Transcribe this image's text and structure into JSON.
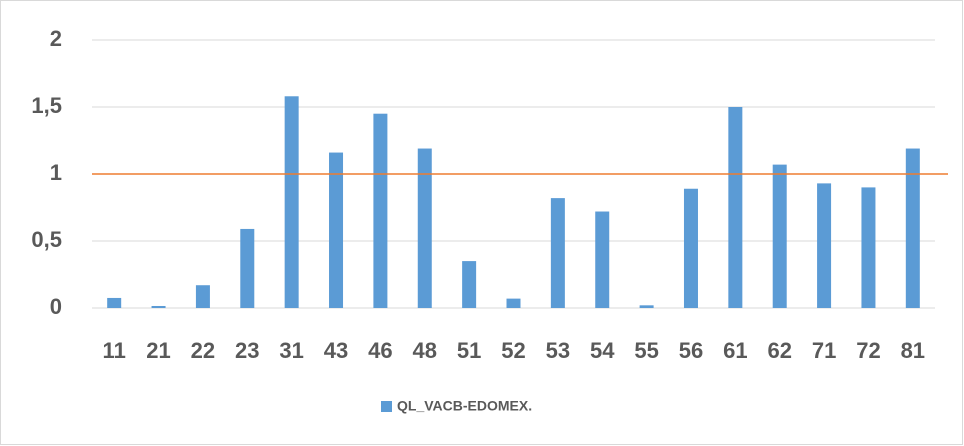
{
  "chart_data": {
    "type": "bar",
    "categories": [
      "11",
      "21",
      "22",
      "23",
      "31",
      "43",
      "46",
      "48",
      "51",
      "52",
      "53",
      "54",
      "55",
      "56",
      "61",
      "62",
      "71",
      "72",
      "81"
    ],
    "series": [
      {
        "name": "QL_VACB-EDOMEX.",
        "color": "#5b9bd5",
        "values": [
          0.075,
          0.015,
          0.17,
          0.59,
          1.58,
          1.16,
          1.45,
          1.19,
          0.35,
          0.07,
          0.82,
          0.72,
          0.02,
          0.89,
          1.5,
          1.07,
          0.93,
          0.9,
          1.19
        ]
      }
    ],
    "ylim": [
      0,
      2
    ],
    "yticks": [
      0,
      {
        "value": 0.5,
        "label": "0,5"
      },
      1,
      {
        "value": 1.5,
        "label": "1,5"
      },
      2
    ],
    "grid": true,
    "legend": "bottom",
    "reference_line": {
      "value": 1,
      "color": "#ed7d31"
    }
  }
}
